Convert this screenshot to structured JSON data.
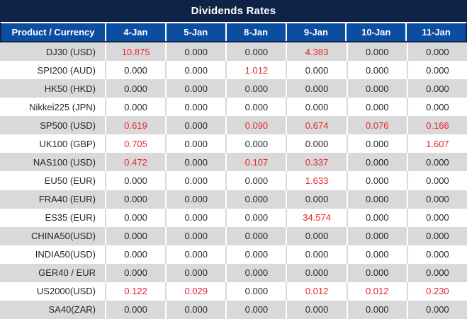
{
  "title": "Dividends Rates",
  "colors": {
    "title_bar": "#0e2345",
    "header_blue": "#0b4da1",
    "row_alt_gray": "#d9d9d9",
    "row_white": "#ffffff",
    "text_dark": "#1f2733",
    "nonzero_red": "#e8262b"
  },
  "table": {
    "product_header": "Product / Currency",
    "date_headers": [
      "4-Jan",
      "5-Jan",
      "8-Jan",
      "9-Jan",
      "10-Jan",
      "11-Jan"
    ],
    "rows": [
      {
        "product": "DJ30 (USD)",
        "values": [
          "10.875",
          "0.000",
          "0.000",
          "4.383",
          "0.000",
          "0.000"
        ]
      },
      {
        "product": "SPI200 (AUD)",
        "values": [
          "0.000",
          "0.000",
          "1.012",
          "0.000",
          "0.000",
          "0.000"
        ]
      },
      {
        "product": "HK50 (HKD)",
        "values": [
          "0.000",
          "0.000",
          "0.000",
          "0.000",
          "0.000",
          "0.000"
        ]
      },
      {
        "product": "Nikkei225 (JPN)",
        "values": [
          "0.000",
          "0.000",
          "0.000",
          "0.000",
          "0.000",
          "0.000"
        ]
      },
      {
        "product": "SP500 (USD)",
        "values": [
          "0.619",
          "0.000",
          "0.090",
          "0.674",
          "0.076",
          "0.166"
        ]
      },
      {
        "product": "UK100 (GBP)",
        "values": [
          "0.705",
          "0.000",
          "0.000",
          "0.000",
          "0.000",
          "1.607"
        ]
      },
      {
        "product": "NAS100 (USD)",
        "values": [
          "0.472",
          "0.000",
          "0.107",
          "0.337",
          "0.000",
          "0.000"
        ]
      },
      {
        "product": "EU50 (EUR)",
        "values": [
          "0.000",
          "0.000",
          "0.000",
          "1.633",
          "0.000",
          "0.000"
        ]
      },
      {
        "product": "FRA40 (EUR)",
        "values": [
          "0.000",
          "0.000",
          "0.000",
          "0.000",
          "0.000",
          "0.000"
        ]
      },
      {
        "product": "ES35 (EUR)",
        "values": [
          "0.000",
          "0.000",
          "0.000",
          "34.574",
          "0.000",
          "0.000"
        ]
      },
      {
        "product": "CHINA50(USD)",
        "values": [
          "0.000",
          "0.000",
          "0.000",
          "0.000",
          "0.000",
          "0.000"
        ]
      },
      {
        "product": "INDIA50(USD)",
        "values": [
          "0.000",
          "0.000",
          "0.000",
          "0.000",
          "0.000",
          "0.000"
        ]
      },
      {
        "product": "GER40 / EUR",
        "values": [
          "0.000",
          "0.000",
          "0.000",
          "0.000",
          "0.000",
          "0.000"
        ]
      },
      {
        "product": "US2000(USD)",
        "values": [
          "0.122",
          "0.029",
          "0.000",
          "0.012",
          "0.012",
          "0.230"
        ]
      },
      {
        "product": "SA40(ZAR)",
        "values": [
          "0.000",
          "0.000",
          "0.000",
          "0.000",
          "0.000",
          "0.000"
        ]
      }
    ]
  }
}
